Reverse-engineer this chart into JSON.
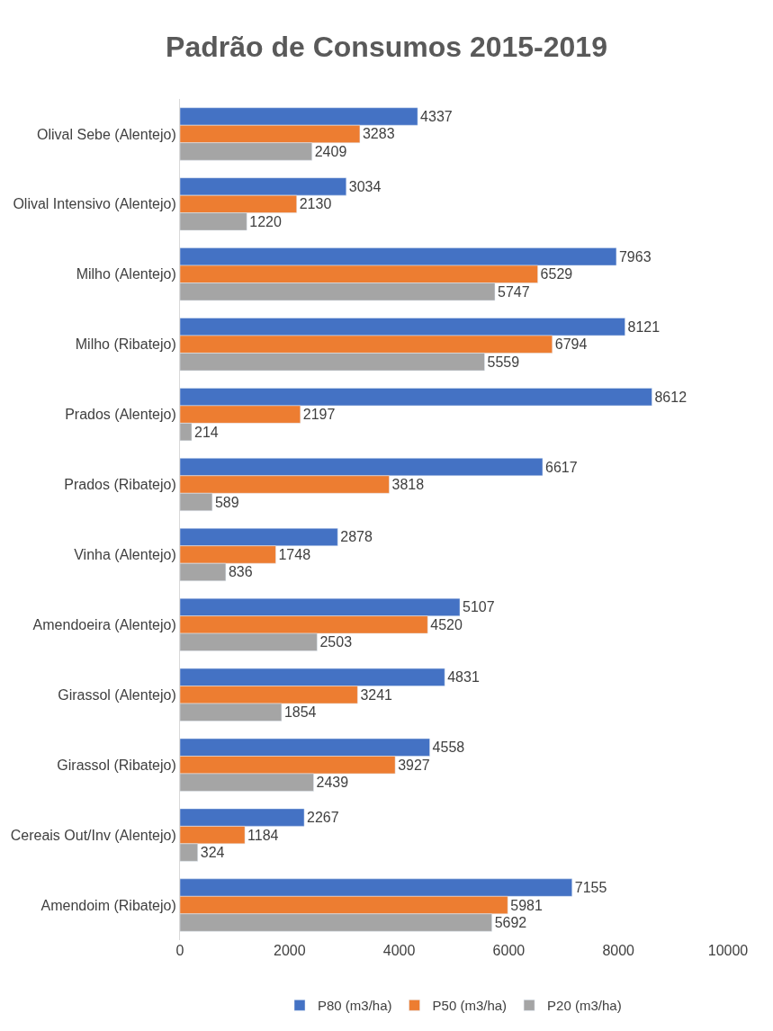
{
  "chart_data": {
    "type": "bar",
    "orientation": "horizontal",
    "title": "Padrão de Consumos 2015-2019",
    "categories": [
      "Olival Sebe (Alentejo)",
      "Olival Intensivo (Alentejo)",
      "Milho (Alentejo)",
      "Milho (Ribatejo)",
      "Prados (Alentejo)",
      "Prados (Ribatejo)",
      "Vinha (Alentejo)",
      "Amendoeira (Alentejo)",
      "Girassol (Alentejo)",
      "Girassol (Ribatejo)",
      "Cereais Out/Inv (Alentejo)",
      "Amendoim (Ribatejo)"
    ],
    "series": [
      {
        "name": "P80 (m3/ha)",
        "color": "#4472c4",
        "values": [
          4337,
          3034,
          7963,
          8121,
          8612,
          6617,
          2878,
          5107,
          4831,
          4558,
          2267,
          7155
        ]
      },
      {
        "name": "P50 (m3/ha)",
        "color": "#ed7d31",
        "values": [
          3283,
          2130,
          6529,
          6794,
          2197,
          3818,
          1748,
          4520,
          3241,
          3927,
          1184,
          5981
        ]
      },
      {
        "name": "P20 (m3/ha)",
        "color": "#a5a5a5",
        "values": [
          2409,
          1220,
          5747,
          5559,
          214,
          589,
          836,
          2503,
          1854,
          2439,
          324,
          5692
        ]
      }
    ],
    "xlim": [
      0,
      10000
    ],
    "xticks": [
      0,
      2000,
      4000,
      6000,
      8000,
      10000
    ],
    "data_labels": true,
    "legend": "bottom"
  }
}
